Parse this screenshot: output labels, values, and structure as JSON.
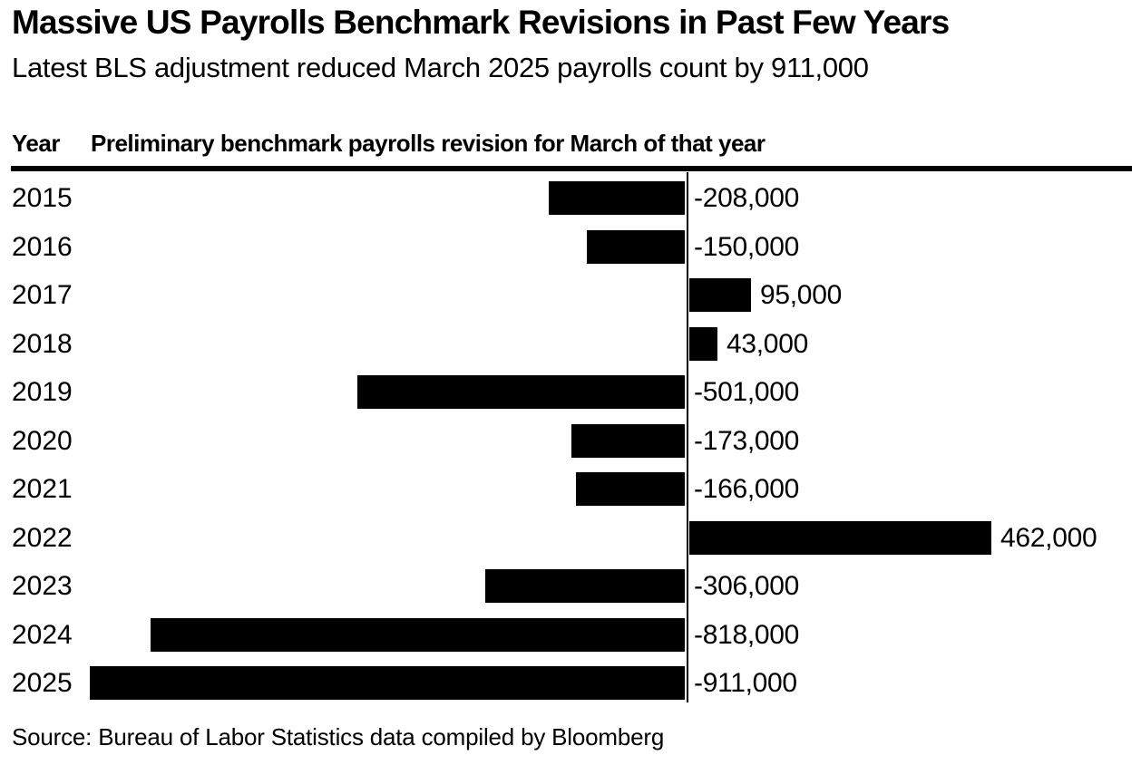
{
  "header": {
    "title": "Massive US Payrolls Benchmark Revisions in Past Few Years",
    "subtitle": "Latest BLS adjustment reduced March 2025 payrolls count by 911,000"
  },
  "table_header": {
    "year_column": "Year",
    "value_column": "Preliminary benchmark payrolls revision for March of that year"
  },
  "chart_data": {
    "type": "bar",
    "orientation": "horizontal",
    "title": "Massive US Payrolls Benchmark Revisions in Past Few Years",
    "subtitle": "Latest BLS adjustment reduced March 2025 payrolls count by 911,000",
    "categories": [
      "2015",
      "2016",
      "2017",
      "2018",
      "2019",
      "2020",
      "2021",
      "2022",
      "2023",
      "2024",
      "2025"
    ],
    "values": [
      -208000,
      -150000,
      95000,
      43000,
      -501000,
      -173000,
      -166000,
      462000,
      -306000,
      -818000,
      -911000
    ],
    "labels": [
      "-208,000",
      "-150,000",
      "95,000",
      "43,000",
      "-501,000",
      "-173,000",
      "-166,000",
      "462,000",
      "-306,000",
      "-818,000",
      "-911,000"
    ],
    "xlim": [
      -930000,
      470000
    ],
    "grid": false,
    "legend": "none",
    "bar_color": "#000000",
    "baseline": 0
  },
  "source": "Source: Bureau of Labor Statistics data compiled by Bloomberg",
  "colors": {
    "background": "#ffffff",
    "bar": "#000000",
    "text": "#000000",
    "rule": "#000000"
  }
}
